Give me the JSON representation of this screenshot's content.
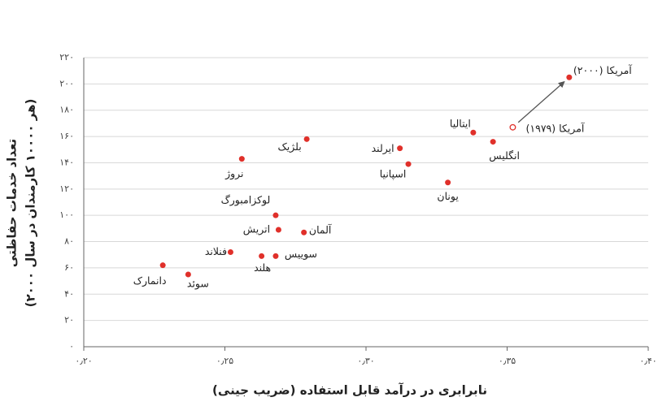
{
  "chart_data": {
    "type": "scatter",
    "xlabel": "نابرابری در درآمد قابل استفاده (ضریب جینی)",
    "ylabel_lines": [
      "تعداد خدمات حفاظتی",
      "(هر ۱۰۰۰۰ کارمندان در سال ۲۰۰۰)"
    ],
    "labels": [
      "دانمارک",
      "سوئد",
      "فنلاند",
      "هلند",
      "سوییس",
      "اتریش",
      "لوکزامبورگ",
      "آلمان",
      "نروژ",
      "بلژیک",
      "ایرلند",
      "اسپانیا",
      "یونان",
      "ایتالیا",
      "انگلیس",
      "آمریکا (۱۹۷۹)",
      "آمریکا (۲۰۰۰)"
    ],
    "x": [
      0.228,
      0.237,
      0.252,
      0.263,
      0.268,
      0.269,
      0.268,
      0.278,
      0.256,
      0.279,
      0.312,
      0.315,
      0.329,
      0.338,
      0.345,
      0.352,
      0.372
    ],
    "y": [
      62,
      55,
      72,
      69,
      69,
      89,
      100,
      87,
      143,
      158,
      151,
      139,
      125,
      163,
      156,
      167,
      205
    ],
    "markers": [
      "filled",
      "filled",
      "filled",
      "filled",
      "filled",
      "filled",
      "filled",
      "filled",
      "filled",
      "filled",
      "filled",
      "filled",
      "filled",
      "filled",
      "filled",
      "open",
      "filled"
    ],
    "color": "#e0302a",
    "xlim": [
      0.2,
      0.4
    ],
    "xticks": [
      {
        "value": 0.2,
        "label": "۰٫۲۰"
      },
      {
        "value": 0.25,
        "label": "۰٫۲۵"
      },
      {
        "value": 0.3,
        "label": "۰٫۳۰"
      },
      {
        "value": 0.35,
        "label": "۰٫۳۵"
      },
      {
        "value": 0.4,
        "label": "۰٫۴۰"
      }
    ],
    "ylim": [
      0,
      220
    ],
    "yticks": [
      {
        "value": 0,
        "label": "۰"
      },
      {
        "value": 20,
        "label": "۲۰"
      },
      {
        "value": 40,
        "label": "۴۰"
      },
      {
        "value": 60,
        "label": "۶۰"
      },
      {
        "value": 80,
        "label": "۸۰"
      },
      {
        "value": 100,
        "label": "۱۰۰"
      },
      {
        "value": 120,
        "label": "۱۲۰"
      },
      {
        "value": 140,
        "label": "۱۴۰"
      },
      {
        "value": 160,
        "label": "۱۶۰"
      },
      {
        "value": 180,
        "label": "۱۸۰"
      },
      {
        "value": 200,
        "label": "۲۰۰"
      },
      {
        "value": 220,
        "label": "۲۲۰"
      }
    ],
    "grid": true
  }
}
